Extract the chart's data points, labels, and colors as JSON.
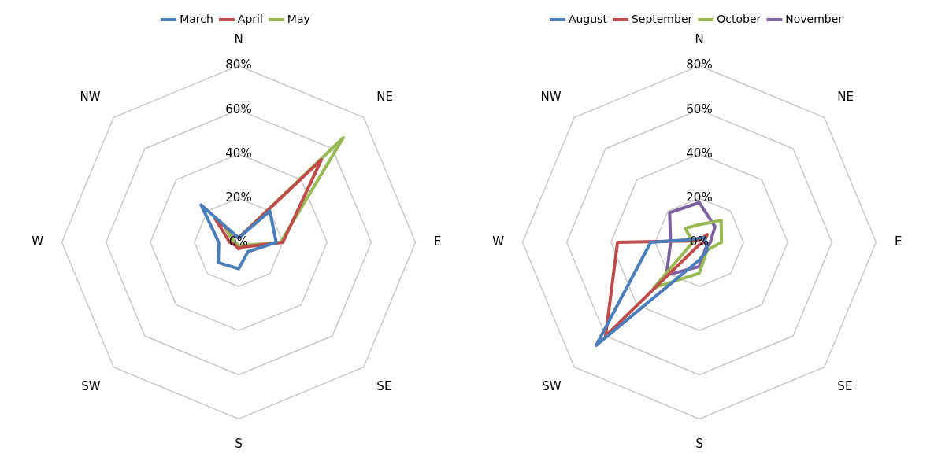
{
  "chart_data": [
    {
      "type": "radar",
      "categories": [
        "N",
        "NE",
        "E",
        "SE",
        "S",
        "SW",
        "W",
        "NW"
      ],
      "ylim": [
        0,
        80
      ],
      "yticks": [
        {
          "value": 0,
          "label": "0%"
        },
        {
          "value": 20,
          "label": "20%"
        },
        {
          "value": 40,
          "label": "40%"
        },
        {
          "value": 60,
          "label": "60%"
        },
        {
          "value": 80,
          "label": "80%"
        }
      ],
      "grid": true,
      "legend": "top",
      "marker": "none",
      "series": [
        {
          "name": "March",
          "color": "#4a7ebb",
          "values": [
            2,
            20,
            17,
            6,
            12,
            13,
            9,
            24
          ]
        },
        {
          "name": "April",
          "color": "#be4b48",
          "values": [
            2,
            53,
            20,
            3,
            3,
            2,
            4,
            15
          ]
        },
        {
          "name": "May",
          "color": "#98b954",
          "values": [
            2,
            67,
            19,
            2,
            2,
            1,
            2,
            8
          ]
        }
      ]
    },
    {
      "type": "radar",
      "categories": [
        "N",
        "NE",
        "E",
        "SE",
        "S",
        "SW",
        "W",
        "NW"
      ],
      "ylim": [
        0,
        80
      ],
      "yticks": [
        {
          "value": 0,
          "label": "0%"
        },
        {
          "value": 20,
          "label": "20%"
        },
        {
          "value": 40,
          "label": "40%"
        },
        {
          "value": 60,
          "label": "60%"
        },
        {
          "value": 80,
          "label": "80%"
        }
      ],
      "grid": true,
      "legend": "top",
      "marker": "none",
      "series": [
        {
          "name": "August",
          "color": "#4a7ebb",
          "values": [
            2,
            3,
            3,
            5,
            8,
            66,
            22,
            2
          ]
        },
        {
          "name": "September",
          "color": "#be4b48",
          "values": [
            1,
            5,
            2,
            1,
            1,
            60,
            37,
            1
          ]
        },
        {
          "name": "October",
          "color": "#98b954",
          "values": [
            8,
            14,
            10,
            5,
            14,
            29,
            3,
            9
          ]
        },
        {
          "name": "November",
          "color": "#7d60a0",
          "values": [
            18,
            10,
            5,
            4,
            11,
            21,
            13,
            19
          ]
        }
      ]
    }
  ]
}
